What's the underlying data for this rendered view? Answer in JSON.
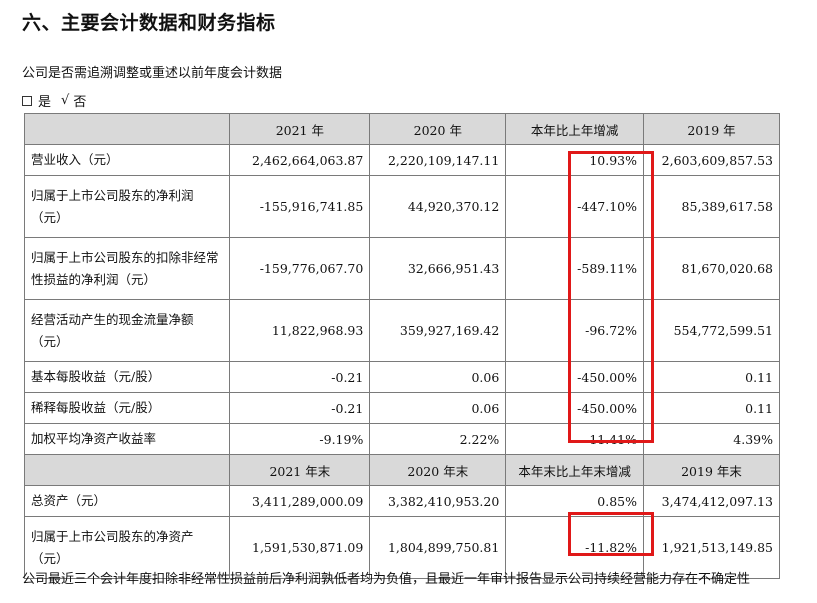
{
  "heading": "六、主要会计数据和财务指标",
  "subtext": "公司是否需追溯调整或重述以前年度会计数据",
  "choice": {
    "yes": "是",
    "check": "√",
    "no": "否"
  },
  "header1": [
    "",
    "2021 年",
    "2020 年",
    "本年比上年增减",
    "2019 年"
  ],
  "rows1": [
    {
      "label": "营业收入（元）",
      "v2021": "2,462,664,063.87",
      "v2020": "2,220,109,147.11",
      "change": "10.93%",
      "v2019": "2,603,609,857.53"
    },
    {
      "label": "归属于上市公司股东的净利润（元）",
      "v2021": "-155,916,741.85",
      "v2020": "44,920,370.12",
      "change": "-447.10%",
      "v2019": "85,389,617.58"
    },
    {
      "label": "归属于上市公司股东的扣除非经常性损益的净利润（元）",
      "v2021": "-159,776,067.70",
      "v2020": "32,666,951.43",
      "change": "-589.11%",
      "v2019": "81,670,020.68"
    },
    {
      "label": "经营活动产生的现金流量净额（元）",
      "v2021": "11,822,968.93",
      "v2020": "359,927,169.42",
      "change": "-96.72%",
      "v2019": "554,772,599.51"
    },
    {
      "label": "基本每股收益（元/股）",
      "v2021": "-0.21",
      "v2020": "0.06",
      "change": "-450.00%",
      "v2019": "0.11"
    },
    {
      "label": "稀释每股收益（元/股）",
      "v2021": "-0.21",
      "v2020": "0.06",
      "change": "-450.00%",
      "v2019": "0.11"
    },
    {
      "label": "加权平均净资产收益率",
      "v2021": "-9.19%",
      "v2020": "2.22%",
      "change": "-11.41%",
      "v2019": "4.39%"
    }
  ],
  "header2": [
    "",
    "2021 年末",
    "2020 年末",
    "本年末比上年末增减",
    "2019 年末"
  ],
  "rows2": [
    {
      "label": "总资产（元）",
      "v2021": "3,411,289,000.09",
      "v2020": "3,382,410,953.20",
      "change": "0.85%",
      "v2019": "3,474,412,097.13"
    },
    {
      "label": "归属于上市公司股东的净资产（元）",
      "v2021": "1,591,530,871.09",
      "v2020": "1,804,899,750.81",
      "change": "-11.82%",
      "v2019": "1,921,513,149.85"
    }
  ],
  "footer": "公司最近三个会计年度扣除非经常性损益前后净利润孰低者均为负值，且最近一年审计报告显示公司持续经营能力存在不确定性",
  "highlight_color": "#e01818"
}
